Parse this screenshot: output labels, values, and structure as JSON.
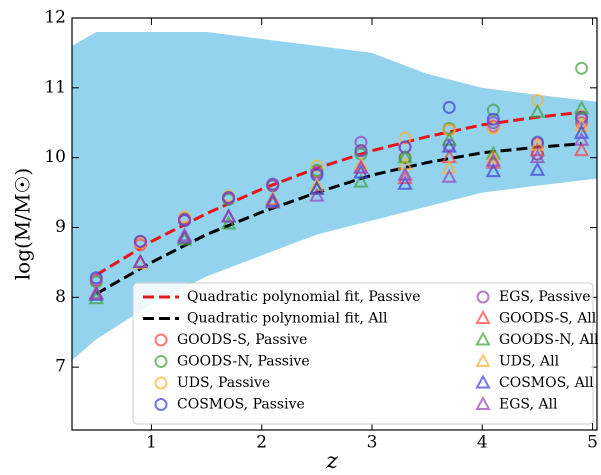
{
  "chart_data": {
    "type": "scatter",
    "xlabel": "z",
    "ylabel": "log(M/M☉)",
    "xlim": [
      0.28,
      5.04
    ],
    "ylim": [
      6.1,
      12
    ],
    "xticks": [
      1,
      2,
      3,
      4,
      5
    ],
    "yticks": [
      7,
      8,
      9,
      10,
      11,
      12
    ],
    "legend": "lower right",
    "cloud": {
      "color": "#87ceeb",
      "x": [
        0.28,
        0.5,
        1,
        1.5,
        2,
        2.5,
        3,
        3.5,
        4,
        4.5,
        5.04
      ],
      "lower": [
        7.1,
        7.4,
        7.9,
        8.3,
        8.6,
        8.9,
        9.1,
        9.3,
        9.5,
        9.6,
        9.7
      ],
      "upper": [
        11.6,
        11.8,
        11.8,
        11.8,
        11.7,
        11.6,
        11.5,
        11.2,
        11.0,
        10.9,
        10.8
      ]
    },
    "series": [
      {
        "name": "Quadratic polynomial fit, Passive",
        "color": "#e8161b",
        "marker": "line",
        "x": [
          0.5,
          1,
          1.5,
          2,
          2.5,
          3,
          3.5,
          4,
          4.5,
          4.9
        ],
        "values": [
          8.32,
          8.8,
          9.2,
          9.55,
          9.85,
          10.1,
          10.3,
          10.47,
          10.58,
          10.65
        ]
      },
      {
        "name": "Quadratic polynomial fit, All",
        "color": "#000000",
        "marker": "line",
        "x": [
          0.5,
          1,
          1.5,
          2,
          2.5,
          3,
          3.5,
          4,
          4.5,
          4.9
        ],
        "values": [
          8.05,
          8.5,
          8.9,
          9.22,
          9.5,
          9.75,
          9.93,
          10.07,
          10.15,
          10.2
        ]
      },
      {
        "name": "GOODS-S, Passive",
        "color": "#ff4040",
        "marker": "circle",
        "x": [
          0.5,
          0.9,
          1.3,
          1.7,
          2.1,
          2.5,
          2.9,
          3.3,
          3.7,
          4.1,
          4.5,
          4.9
        ],
        "values": [
          8.25,
          8.75,
          9.1,
          9.42,
          9.6,
          9.8,
          10.1,
          10.0,
          10.4,
          10.45,
          10.2,
          10.5
        ]
      },
      {
        "name": "GOODS-N, Passive",
        "color": "#3f9f3a",
        "marker": "circle",
        "x": [
          0.5,
          0.9,
          1.3,
          1.7,
          2.1,
          2.5,
          2.9,
          3.3,
          3.7,
          4.1,
          4.5,
          4.9
        ],
        "values": [
          8.22,
          8.8,
          9.12,
          9.4,
          9.6,
          9.82,
          10.05,
          10.0,
          10.42,
          10.68,
          10.05,
          11.28
        ]
      },
      {
        "name": "UDS, Passive",
        "color": "#ffb030",
        "marker": "circle",
        "x": [
          0.5,
          0.9,
          1.3,
          1.7,
          2.1,
          2.5,
          2.9,
          3.3,
          3.7,
          4.1,
          4.5,
          4.9
        ],
        "values": [
          8.25,
          8.78,
          9.15,
          9.45,
          9.62,
          9.88,
          10.1,
          10.28,
          10.4,
          10.42,
          10.82,
          10.6
        ]
      },
      {
        "name": "COSMOS, Passive",
        "color": "#3c3cdc",
        "marker": "circle",
        "x": [
          0.5,
          0.9,
          1.3,
          1.7,
          2.1,
          2.5,
          2.9,
          3.3,
          3.7,
          4.1,
          4.5,
          4.9
        ],
        "values": [
          8.28,
          8.8,
          9.1,
          9.43,
          9.62,
          9.75,
          10.1,
          10.15,
          10.72,
          10.55,
          10.22,
          10.58
        ]
      },
      {
        "name": "EGS, Passive",
        "color": "#9440c0",
        "marker": "circle",
        "x": [
          0.5,
          0.9,
          1.3,
          1.7,
          2.1,
          2.5,
          2.9,
          3.3,
          3.7,
          4.1,
          4.5,
          4.9
        ],
        "values": [
          8.25,
          8.8,
          9.12,
          9.42,
          9.6,
          9.78,
          10.22,
          10.15,
          10.18,
          10.5,
          10.05,
          10.55
        ]
      },
      {
        "name": "GOODS-S, All",
        "color": "#ff4040",
        "marker": "triangle",
        "x": [
          0.5,
          0.9,
          1.3,
          1.7,
          2.1,
          2.5,
          2.9,
          3.3,
          3.7,
          4.1,
          4.5,
          4.9
        ],
        "values": [
          8.05,
          8.5,
          8.85,
          9.15,
          9.4,
          9.55,
          9.85,
          9.7,
          10.0,
          9.92,
          10.1,
          10.1
        ]
      },
      {
        "name": "GOODS-N, All",
        "color": "#3f9f3a",
        "marker": "triangle",
        "x": [
          0.5,
          0.9,
          1.3,
          1.7,
          2.1,
          2.5,
          2.9,
          3.3,
          3.7,
          4.1,
          4.5,
          4.9
        ],
        "values": [
          7.98,
          8.5,
          8.82,
          9.05,
          9.35,
          9.55,
          9.65,
          10.0,
          10.25,
          10.05,
          10.65,
          10.7
        ]
      },
      {
        "name": "UDS, All",
        "color": "#ffb030",
        "marker": "triangle",
        "x": [
          0.5,
          0.9,
          1.3,
          1.7,
          2.1,
          2.5,
          2.9,
          3.3,
          3.7,
          4.1,
          4.5,
          4.9
        ],
        "values": [
          8.05,
          8.48,
          8.85,
          9.15,
          9.4,
          9.6,
          9.9,
          9.9,
          9.85,
          10.0,
          10.18,
          10.45
        ]
      },
      {
        "name": "COSMOS, All",
        "color": "#3c3cdc",
        "marker": "triangle",
        "x": [
          0.5,
          0.9,
          1.3,
          1.7,
          2.1,
          2.5,
          2.9,
          3.3,
          3.7,
          4.1,
          4.5,
          4.9
        ],
        "values": [
          8.03,
          8.5,
          8.85,
          9.15,
          9.38,
          9.55,
          9.78,
          9.62,
          10.15,
          9.8,
          9.82,
          10.35
        ]
      },
      {
        "name": "EGS, All",
        "color": "#9440c0",
        "marker": "triangle",
        "x": [
          0.5,
          0.9,
          1.3,
          1.7,
          2.1,
          2.5,
          2.9,
          3.3,
          3.7,
          4.1,
          4.5,
          4.9
        ],
        "values": [
          8.05,
          8.5,
          8.88,
          9.15,
          9.35,
          9.45,
          9.85,
          9.75,
          9.72,
          9.95,
          10.0,
          10.25
        ]
      }
    ]
  }
}
